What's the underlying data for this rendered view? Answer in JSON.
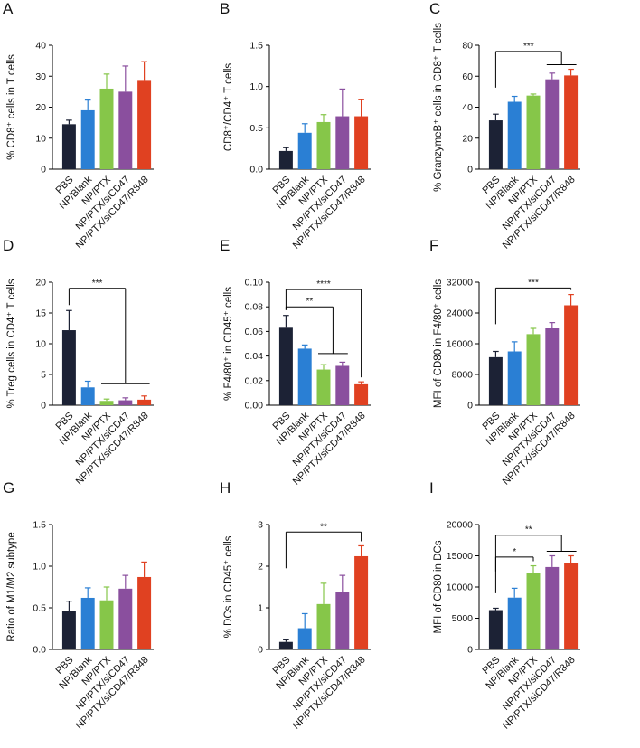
{
  "figure": {
    "groups": [
      "PBS",
      "NP/Blank",
      "NP/PTX",
      "NP/PTX/siCD47",
      "NP/PTX/siCD47/R848"
    ]
  },
  "palette": [
    "#1c2235",
    "#2a7fd4",
    "#86c649",
    "#8a4f9e",
    "#e04121"
  ],
  "chart_data": [
    {
      "letter": "A",
      "type": "bar",
      "ylabel": "% CD8⁺ cells in T cells",
      "ylim": [
        0,
        40
      ],
      "ticks": [
        "0",
        "10",
        "20",
        "30",
        "40"
      ],
      "values": [
        14.5,
        19.0,
        26.0,
        25.0,
        28.5
      ],
      "errors": [
        1.3,
        3.3,
        4.7,
        8.3,
        6.2
      ],
      "significance": []
    },
    {
      "letter": "B",
      "type": "bar",
      "ylabel": "CD8⁺/CD4⁺ T cells",
      "ylim": [
        0,
        1.5
      ],
      "ticks": [
        "0.0",
        "0.5",
        "1.0",
        "1.5"
      ],
      "values": [
        0.22,
        0.44,
        0.57,
        0.64,
        0.64
      ],
      "errors": [
        0.04,
        0.11,
        0.09,
        0.33,
        0.2
      ],
      "significance": []
    },
    {
      "letter": "C",
      "type": "bar",
      "ylabel": "% GranzymeB⁺ cells in CD8⁺ T cells",
      "ylim": [
        0,
        80
      ],
      "ticks": [
        "0",
        "20",
        "40",
        "60",
        "80"
      ],
      "values": [
        31.5,
        43.5,
        47.5,
        58.0,
        60.5
      ],
      "errors": [
        4.0,
        3.5,
        1.0,
        4.0,
        4.0
      ],
      "significance": [
        {
          "label": "***",
          "from": 0,
          "to": [
            3,
            4
          ],
          "level": 76
        }
      ]
    },
    {
      "letter": "D",
      "type": "bar",
      "ylabel": "% Treg cells in CD4⁺ T cells",
      "ylim": [
        0,
        20
      ],
      "ticks": [
        "0",
        "5",
        "10",
        "15",
        "20"
      ],
      "values": [
        12.2,
        2.9,
        0.7,
        0.8,
        0.9
      ],
      "errors": [
        3.2,
        1.0,
        0.3,
        0.4,
        0.6
      ],
      "significance": [
        {
          "label": "***",
          "from": 0,
          "to": [
            2,
            4
          ],
          "level": 19,
          "groupBar": 3.5
        }
      ]
    },
    {
      "letter": "E",
      "type": "bar",
      "ylabel": "% F4/80⁺ in CD45⁺ cells",
      "ylim": [
        0,
        0.1
      ],
      "ticks": [
        "0.00",
        "0.02",
        "0.04",
        "0.06",
        "0.08",
        "0.10"
      ],
      "values": [
        0.063,
        0.046,
        0.029,
        0.032,
        0.017
      ],
      "errors": [
        0.01,
        0.003,
        0.004,
        0.003,
        0.002
      ],
      "significance": [
        {
          "label": "****",
          "from": 0,
          "to": [
            4
          ],
          "level": 0.094
        },
        {
          "label": "**",
          "from": 0,
          "to": [
            2,
            3
          ],
          "level": 0.08,
          "groupBar": 0.042
        }
      ]
    },
    {
      "letter": "F",
      "type": "bar",
      "ylabel": "MFI of CD80 in F4/80⁺ cells",
      "ylim": [
        0,
        32000
      ],
      "ticks": [
        "0",
        "8000",
        "16000",
        "24000",
        "32000"
      ],
      "values": [
        12500,
        14000,
        18500,
        20000,
        26000
      ],
      "errors": [
        1500,
        2500,
        1500,
        1500,
        2800
      ],
      "significance": [
        {
          "label": "***",
          "from": 0,
          "to": [
            4
          ],
          "level": 30500
        }
      ]
    },
    {
      "letter": "G",
      "type": "bar",
      "ylabel": "Ratio of M1/M2 subtype",
      "ylim": [
        0,
        1.5
      ],
      "ticks": [
        "0.0",
        "0.5",
        "1.0",
        "1.5"
      ],
      "values": [
        0.46,
        0.62,
        0.59,
        0.73,
        0.87
      ],
      "errors": [
        0.12,
        0.12,
        0.16,
        0.16,
        0.18
      ],
      "significance": []
    },
    {
      "letter": "H",
      "type": "bar",
      "ylabel": "% DCs in CD45⁺ cells",
      "ylim": [
        0,
        3
      ],
      "ticks": [
        "0",
        "1",
        "2",
        "3"
      ],
      "values": [
        0.18,
        0.51,
        1.09,
        1.38,
        2.24
      ],
      "errors": [
        0.05,
        0.35,
        0.5,
        0.4,
        0.25
      ],
      "significance": [
        {
          "label": "**",
          "from": 0,
          "to": [
            4
          ],
          "level": 2.82
        }
      ]
    },
    {
      "letter": "I",
      "type": "bar",
      "ylabel": "MFI of CD80 in DCs",
      "ylim": [
        0,
        20000
      ],
      "ticks": [
        "0",
        "5000",
        "10000",
        "15000",
        "20000"
      ],
      "values": [
        6300,
        8300,
        12200,
        13200,
        13900
      ],
      "errors": [
        300,
        1500,
        1200,
        1800,
        1100
      ],
      "significance": [
        {
          "label": "**",
          "from": 0,
          "to": [
            3,
            4
          ],
          "level": 18300
        },
        {
          "label": "*",
          "from": 0,
          "to": [
            2
          ],
          "level": 14800
        }
      ]
    }
  ]
}
